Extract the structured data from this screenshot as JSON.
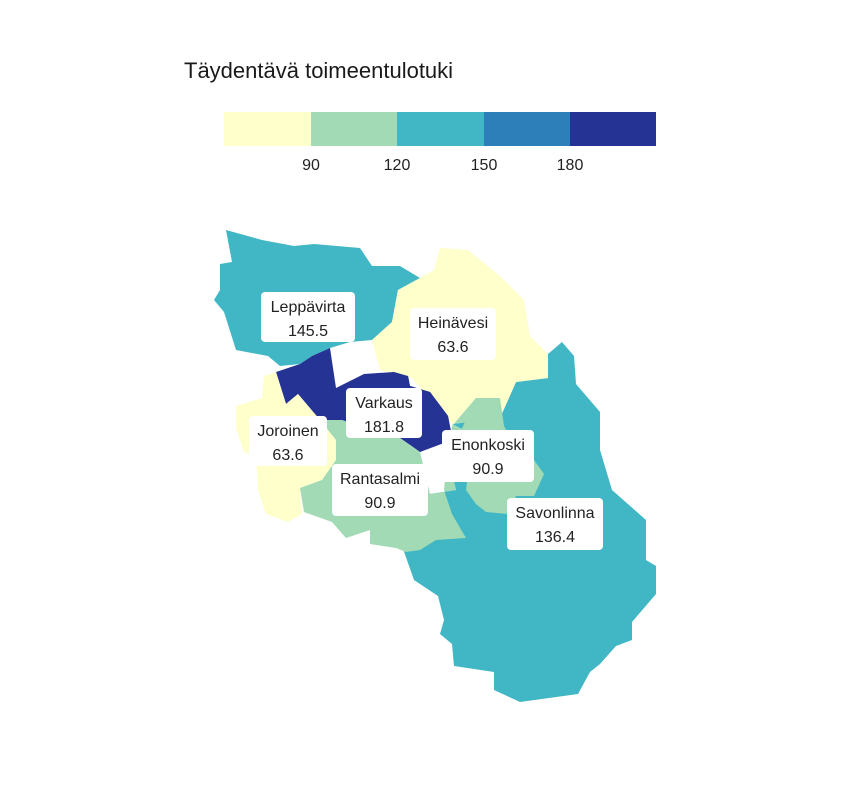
{
  "title": "Täydentävä toimeentulotuki",
  "legend": {
    "bins": [
      {
        "color": "#ffffcc"
      },
      {
        "color": "#a1dab4"
      },
      {
        "color": "#41b6c4"
      },
      {
        "color": "#2c7fb8"
      },
      {
        "color": "#253494"
      }
    ],
    "ticks": [
      "90",
      "120",
      "150",
      "180"
    ]
  },
  "municipalities": [
    {
      "name": "Leppävirta",
      "value": "145.5",
      "color": "#41b6c4"
    },
    {
      "name": "Heinävesi",
      "value": "63.6",
      "color": "#ffffcc"
    },
    {
      "name": "Varkaus",
      "value": "181.8",
      "color": "#253494"
    },
    {
      "name": "Joroinen",
      "value": "63.6",
      "color": "#ffffcc"
    },
    {
      "name": "Enonkoski",
      "value": "90.9",
      "color": "#a1dab4"
    },
    {
      "name": "Rantasalmi",
      "value": "90.9",
      "color": "#a1dab4"
    },
    {
      "name": "Savonlinna",
      "value": "136.4",
      "color": "#41b6c4"
    }
  ]
}
